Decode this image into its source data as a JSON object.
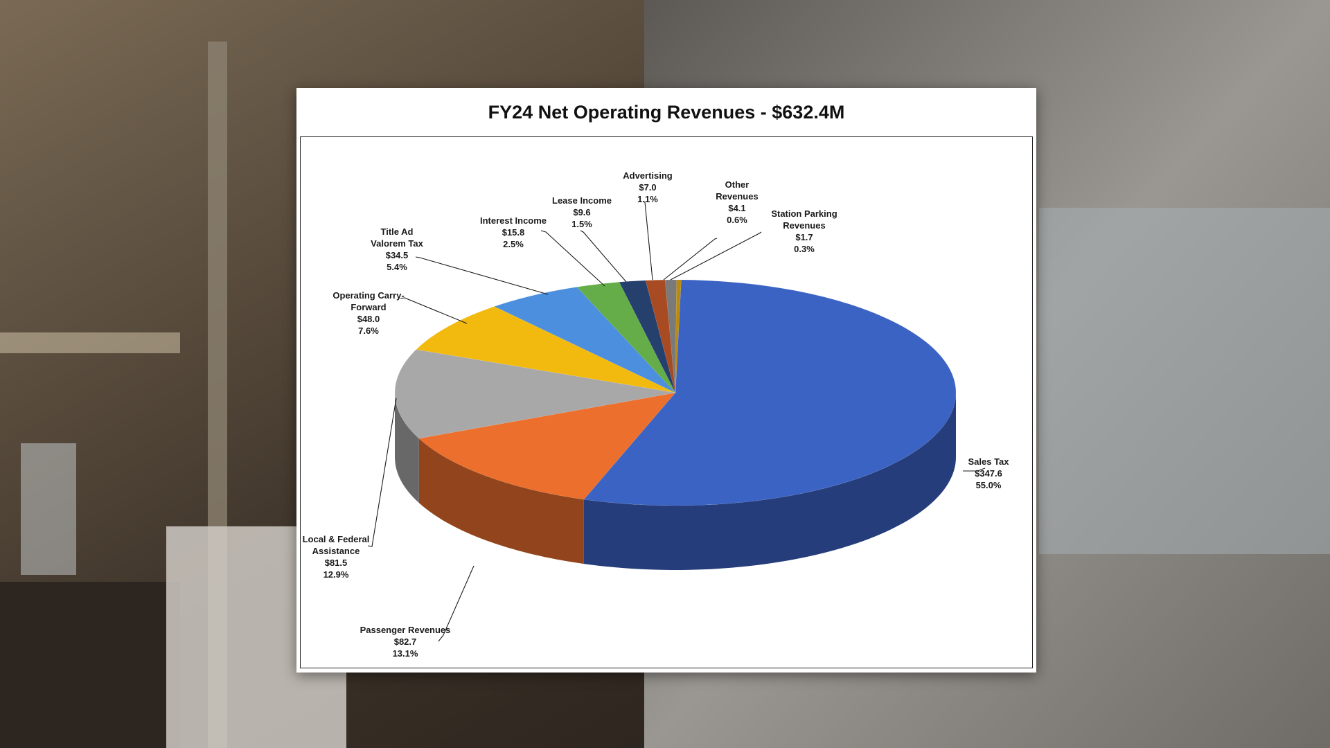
{
  "colors": {
    "background_interior": "#3a3027",
    "background_window": "#8d8a86"
  },
  "chart_data": {
    "type": "pie",
    "title": "FY24 Net Operating Revenues - $632.4M",
    "three_d": true,
    "slices": [
      {
        "name": "Sales Tax",
        "value": 347.6,
        "value_label": "$347.6",
        "pct_label": "55.0%",
        "color": "#3b63c4"
      },
      {
        "name": "Passenger Revenues",
        "value": 82.7,
        "value_label": "$82.7",
        "pct_label": "13.1%",
        "color": "#ec6f2d"
      },
      {
        "name": "Local & Federal Assistance",
        "value": 81.5,
        "value_label": "$81.5",
        "pct_label": "12.9%",
        "color": "#a8a8a8"
      },
      {
        "name": "Operating Carry-Forward",
        "value": 48.0,
        "value_label": "$48.0",
        "pct_label": "7.6%",
        "color": "#f2b90f"
      },
      {
        "name": "Title Ad Valorem Tax",
        "value": 34.5,
        "value_label": "$34.5",
        "pct_label": "5.4%",
        "color": "#4b8fde"
      },
      {
        "name": "Interest Income",
        "value": 15.8,
        "value_label": "$15.8",
        "pct_label": "2.5%",
        "color": "#64ad48"
      },
      {
        "name": "Lease Income",
        "value": 9.6,
        "value_label": "$9.6",
        "pct_label": "1.5%",
        "color": "#26406e"
      },
      {
        "name": "Advertising",
        "value": 7.0,
        "value_label": "$7.0",
        "pct_label": "1.1%",
        "color": "#a84a22"
      },
      {
        "name": "Other Revenues",
        "value": 4.1,
        "value_label": "$4.1",
        "pct_label": "0.6%",
        "color": "#7a7a7a"
      },
      {
        "name": "Station Parking Revenues",
        "value": 1.7,
        "value_label": "$1.7",
        "pct_label": "0.3%",
        "color": "#b88a12"
      }
    ]
  }
}
